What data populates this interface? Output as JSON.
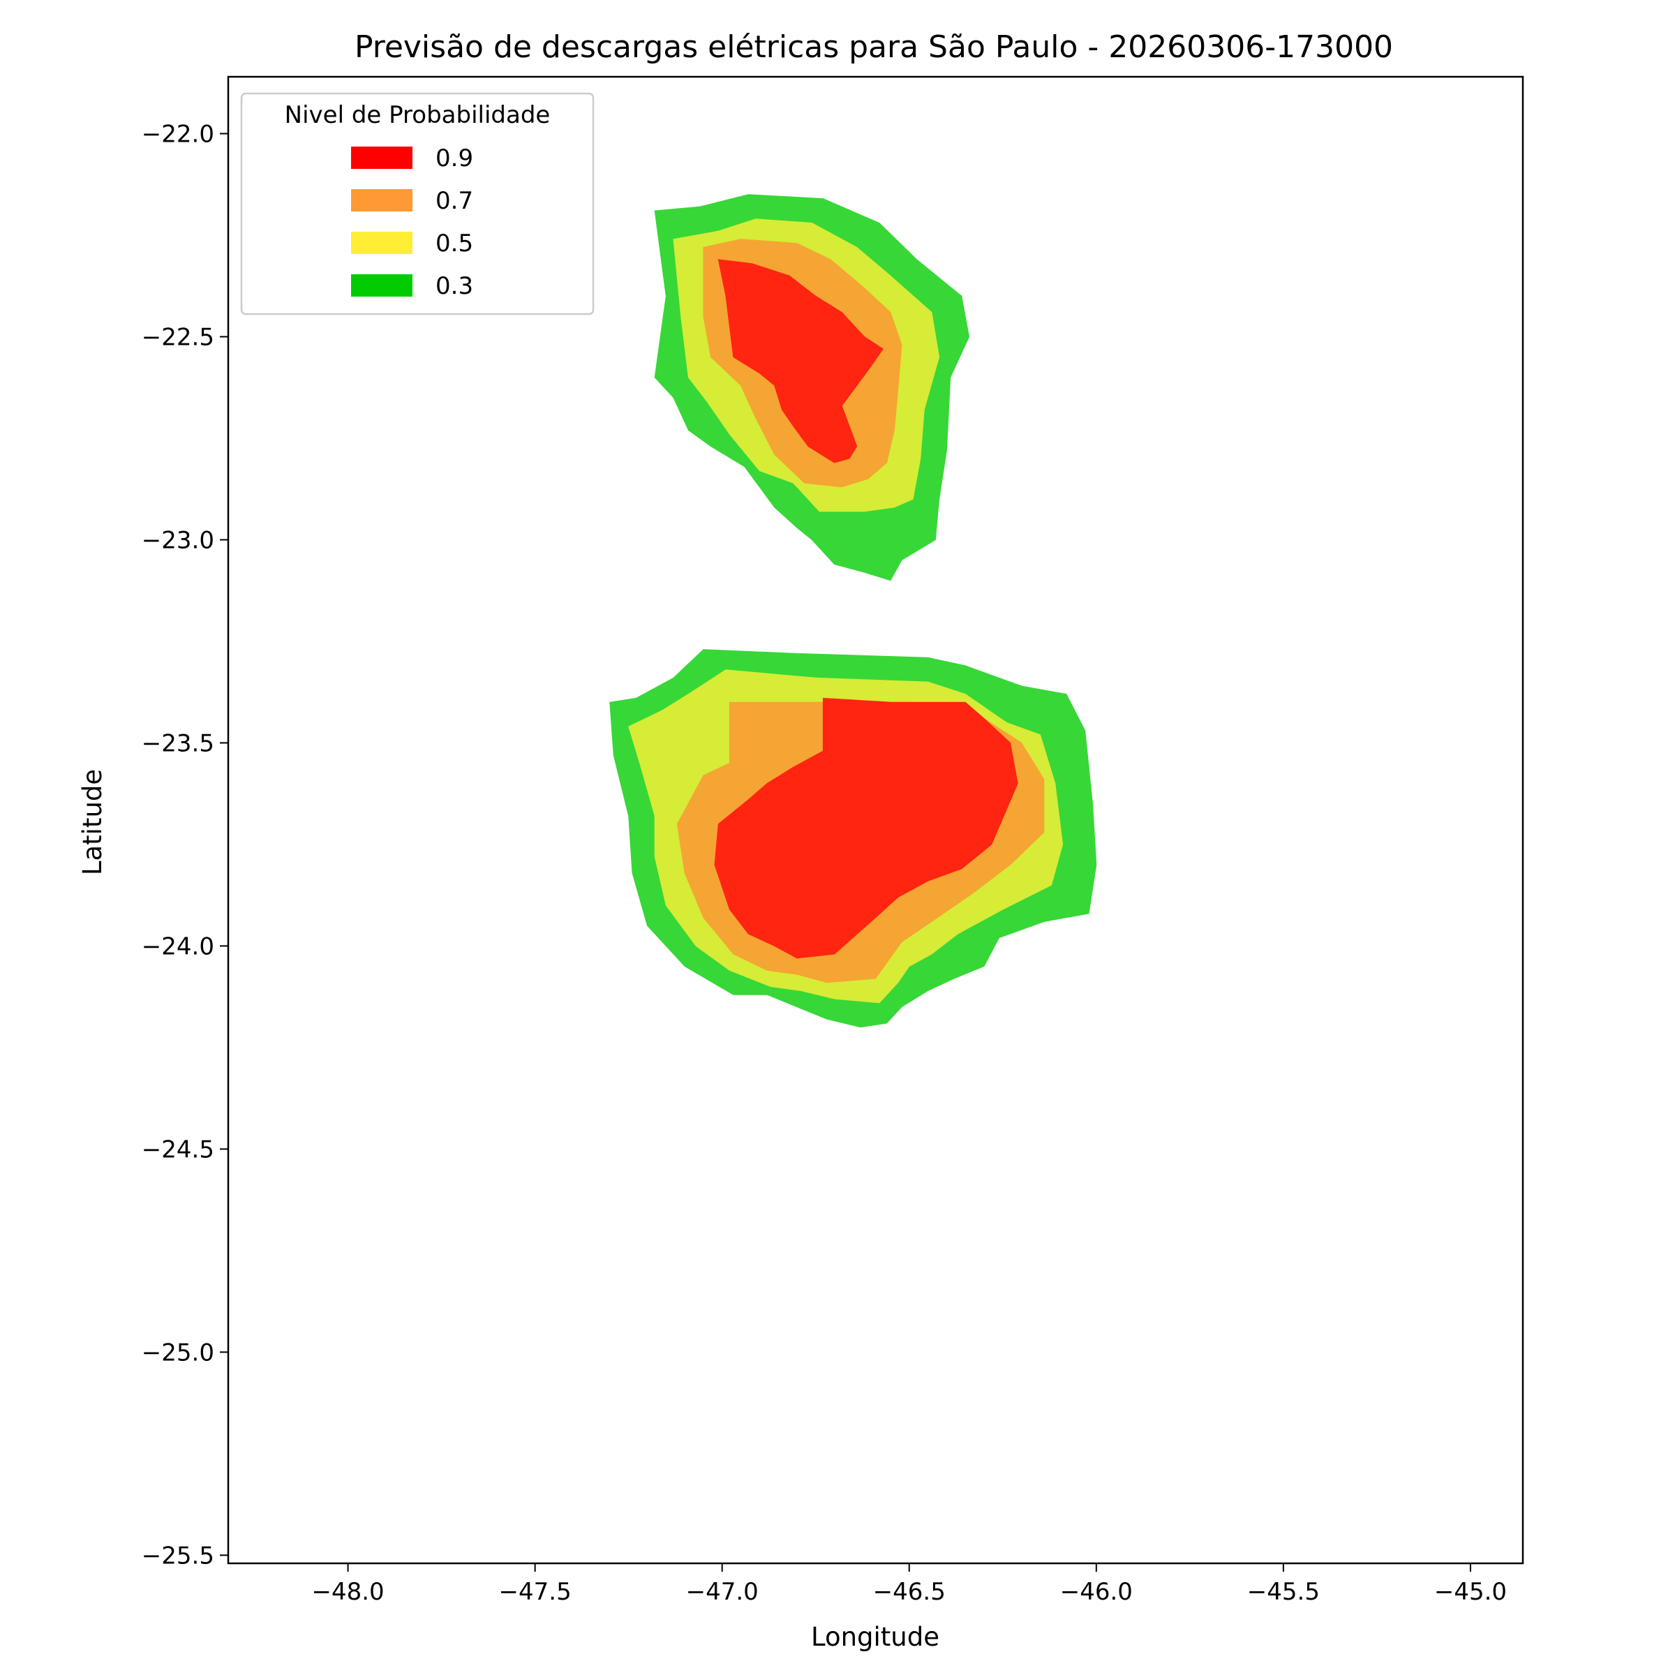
{
  "chart_data": {
    "type": "contour",
    "title": "Previsão de descargas elétricas para São Paulo - 20260306-173000",
    "xlabel": "Longitude",
    "ylabel": "Latitude",
    "xlim": [
      -48.32,
      -44.86
    ],
    "ylim": [
      -25.52,
      -21.86
    ],
    "x_ticks": [
      -48.0,
      -47.5,
      -47.0,
      -46.5,
      -46.0,
      -45.5,
      -45.0
    ],
    "y_ticks": [
      -22.0,
      -22.5,
      -23.0,
      -23.5,
      -24.0,
      -24.5,
      -25.0,
      -25.5
    ],
    "x_tick_labels": [
      "−48.0",
      "−47.5",
      "−47.0",
      "−46.5",
      "−46.0",
      "−45.5",
      "−45.0"
    ],
    "y_tick_labels": [
      "−22.0",
      "−22.5",
      "−23.0",
      "−23.5",
      "−24.0",
      "−24.5",
      "−25.0",
      "−25.5"
    ],
    "grid": false,
    "legend": {
      "title": "Nivel de Probabilidade",
      "placement": "top-left",
      "entries": [
        {
          "label": "0.9",
          "color": "#ff0000"
        },
        {
          "label": "0.7",
          "color": "#ff9933"
        },
        {
          "label": "0.5",
          "color": "#ffee33"
        },
        {
          "label": "0.3",
          "color": "#00cc00"
        }
      ]
    },
    "levels": [
      {
        "level": 0.3,
        "color": "#37d737",
        "regions": [
          [
            [
              -47.18,
              -22.19
            ],
            [
              -47.06,
              -22.18
            ],
            [
              -46.93,
              -22.15
            ],
            [
              -46.73,
              -22.16
            ],
            [
              -46.58,
              -22.22
            ],
            [
              -46.48,
              -22.31
            ],
            [
              -46.36,
              -22.4
            ],
            [
              -46.34,
              -22.5
            ],
            [
              -46.39,
              -22.6
            ],
            [
              -46.4,
              -22.78
            ],
            [
              -46.42,
              -22.9
            ],
            [
              -46.43,
              -23.0
            ],
            [
              -46.52,
              -23.05
            ],
            [
              -46.55,
              -23.1
            ],
            [
              -46.62,
              -23.08
            ],
            [
              -46.7,
              -23.06
            ],
            [
              -46.76,
              -23.0
            ],
            [
              -46.8,
              -22.97
            ],
            [
              -46.86,
              -22.92
            ],
            [
              -46.94,
              -22.82
            ],
            [
              -47.03,
              -22.77
            ],
            [
              -47.09,
              -22.73
            ],
            [
              -47.13,
              -22.65
            ],
            [
              -47.18,
              -22.6
            ],
            [
              -47.15,
              -22.4
            ]
          ],
          [
            [
              -47.05,
              -23.27
            ],
            [
              -46.8,
              -23.28
            ],
            [
              -46.45,
              -23.29
            ],
            [
              -46.35,
              -23.31
            ],
            [
              -46.2,
              -23.36
            ],
            [
              -46.08,
              -23.38
            ],
            [
              -46.03,
              -23.47
            ],
            [
              -46.01,
              -23.65
            ],
            [
              -46.0,
              -23.8
            ],
            [
              -46.02,
              -23.92
            ],
            [
              -46.14,
              -23.94
            ],
            [
              -46.26,
              -23.98
            ],
            [
              -46.3,
              -24.05
            ],
            [
              -46.38,
              -24.08
            ],
            [
              -46.45,
              -24.11
            ],
            [
              -46.52,
              -24.15
            ],
            [
              -46.56,
              -24.19
            ],
            [
              -46.63,
              -24.2
            ],
            [
              -46.72,
              -24.18
            ],
            [
              -46.8,
              -24.15
            ],
            [
              -46.88,
              -24.12
            ],
            [
              -46.97,
              -24.12
            ],
            [
              -47.1,
              -24.05
            ],
            [
              -47.2,
              -23.95
            ],
            [
              -47.24,
              -23.82
            ],
            [
              -47.25,
              -23.68
            ],
            [
              -47.29,
              -23.53
            ],
            [
              -47.3,
              -23.4
            ],
            [
              -47.23,
              -23.39
            ],
            [
              -47.13,
              -23.34
            ]
          ]
        ]
      },
      {
        "level": 0.5,
        "color": "#d6ec37",
        "regions": [
          [
            [
              -47.13,
              -22.26
            ],
            [
              -47.01,
              -22.24
            ],
            [
              -46.91,
              -22.21
            ],
            [
              -46.76,
              -22.22
            ],
            [
              -46.64,
              -22.28
            ],
            [
              -46.55,
              -22.35
            ],
            [
              -46.44,
              -22.44
            ],
            [
              -46.42,
              -22.55
            ],
            [
              -46.46,
              -22.68
            ],
            [
              -46.47,
              -22.8
            ],
            [
              -46.49,
              -22.9
            ],
            [
              -46.54,
              -22.92
            ],
            [
              -46.62,
              -22.93
            ],
            [
              -46.74,
              -22.93
            ],
            [
              -46.81,
              -22.86
            ],
            [
              -46.9,
              -22.83
            ],
            [
              -46.98,
              -22.74
            ],
            [
              -47.04,
              -22.66
            ],
            [
              -47.09,
              -22.6
            ],
            [
              -47.11,
              -22.45
            ]
          ],
          [
            [
              -46.99,
              -23.32
            ],
            [
              -46.75,
              -23.34
            ],
            [
              -46.45,
              -23.35
            ],
            [
              -46.35,
              -23.38
            ],
            [
              -46.24,
              -23.45
            ],
            [
              -46.15,
              -23.48
            ],
            [
              -46.11,
              -23.6
            ],
            [
              -46.09,
              -23.75
            ],
            [
              -46.12,
              -23.85
            ],
            [
              -46.25,
              -23.91
            ],
            [
              -46.37,
              -23.97
            ],
            [
              -46.44,
              -24.02
            ],
            [
              -46.5,
              -24.05
            ],
            [
              -46.53,
              -24.09
            ],
            [
              -46.58,
              -24.14
            ],
            [
              -46.7,
              -24.13
            ],
            [
              -46.79,
              -24.11
            ],
            [
              -46.87,
              -24.1
            ],
            [
              -46.98,
              -24.06
            ],
            [
              -47.07,
              -24.0
            ],
            [
              -47.15,
              -23.9
            ],
            [
              -47.18,
              -23.78
            ],
            [
              -47.18,
              -23.68
            ],
            [
              -47.22,
              -23.55
            ],
            [
              -47.25,
              -23.46
            ],
            [
              -47.16,
              -23.42
            ],
            [
              -47.09,
              -23.38
            ]
          ]
        ]
      },
      {
        "level": 0.7,
        "color": "#f5a533",
        "regions": [
          [
            [
              -47.05,
              -22.28
            ],
            [
              -46.95,
              -22.26
            ],
            [
              -46.8,
              -22.27
            ],
            [
              -46.71,
              -22.31
            ],
            [
              -46.62,
              -22.38
            ],
            [
              -46.55,
              -22.44
            ],
            [
              -46.52,
              -22.52
            ],
            [
              -46.53,
              -22.63
            ],
            [
              -46.54,
              -22.73
            ],
            [
              -46.56,
              -22.81
            ],
            [
              -46.61,
              -22.85
            ],
            [
              -46.68,
              -22.87
            ],
            [
              -46.78,
              -22.86
            ],
            [
              -46.86,
              -22.79
            ],
            [
              -46.91,
              -22.7
            ],
            [
              -46.95,
              -22.62
            ],
            [
              -47.03,
              -22.55
            ],
            [
              -47.05,
              -22.45
            ]
          ],
          [
            [
              -46.98,
              -23.4
            ],
            [
              -46.72,
              -23.4
            ],
            [
              -46.5,
              -23.4
            ],
            [
              -46.3,
              -23.44
            ],
            [
              -46.2,
              -23.5
            ],
            [
              -46.14,
              -23.59
            ],
            [
              -46.14,
              -23.72
            ],
            [
              -46.23,
              -23.8
            ],
            [
              -46.33,
              -23.87
            ],
            [
              -46.44,
              -23.94
            ],
            [
              -46.52,
              -23.99
            ],
            [
              -46.59,
              -24.08
            ],
            [
              -46.72,
              -24.09
            ],
            [
              -46.8,
              -24.07
            ],
            [
              -46.88,
              -24.06
            ],
            [
              -46.97,
              -24.02
            ],
            [
              -47.05,
              -23.93
            ],
            [
              -47.1,
              -23.82
            ],
            [
              -47.12,
              -23.7
            ],
            [
              -47.05,
              -23.58
            ],
            [
              -46.98,
              -23.55
            ]
          ]
        ]
      },
      {
        "level": 0.9,
        "color": "#ff2510",
        "regions": [
          [
            [
              -47.01,
              -22.31
            ],
            [
              -46.92,
              -22.32
            ],
            [
              -46.82,
              -22.35
            ],
            [
              -46.75,
              -22.4
            ],
            [
              -46.68,
              -22.44
            ],
            [
              -46.62,
              -22.5
            ],
            [
              -46.57,
              -22.53
            ],
            [
              -46.6,
              -22.57
            ],
            [
              -46.64,
              -22.62
            ],
            [
              -46.68,
              -22.67
            ],
            [
              -46.64,
              -22.77
            ],
            [
              -46.66,
              -22.8
            ],
            [
              -46.7,
              -22.81
            ],
            [
              -46.77,
              -22.77
            ],
            [
              -46.81,
              -22.72
            ],
            [
              -46.84,
              -22.68
            ],
            [
              -46.86,
              -22.62
            ],
            [
              -46.9,
              -22.59
            ],
            [
              -46.97,
              -22.55
            ],
            [
              -46.99,
              -22.4
            ]
          ],
          [
            [
              -46.73,
              -23.39
            ],
            [
              -46.55,
              -23.4
            ],
            [
              -46.35,
              -23.4
            ],
            [
              -46.3,
              -23.44
            ],
            [
              -46.23,
              -23.5
            ],
            [
              -46.21,
              -23.6
            ],
            [
              -46.28,
              -23.75
            ],
            [
              -46.36,
              -23.81
            ],
            [
              -46.45,
              -23.84
            ],
            [
              -46.53,
              -23.88
            ],
            [
              -46.59,
              -23.93
            ],
            [
              -46.7,
              -24.02
            ],
            [
              -46.8,
              -24.03
            ],
            [
              -46.86,
              -24.0
            ],
            [
              -46.93,
              -23.97
            ],
            [
              -46.98,
              -23.91
            ],
            [
              -47.02,
              -23.8
            ],
            [
              -47.01,
              -23.7
            ],
            [
              -46.93,
              -23.64
            ],
            [
              -46.88,
              -23.6
            ],
            [
              -46.81,
              -23.56
            ],
            [
              -46.73,
              -23.52
            ]
          ]
        ]
      }
    ]
  }
}
